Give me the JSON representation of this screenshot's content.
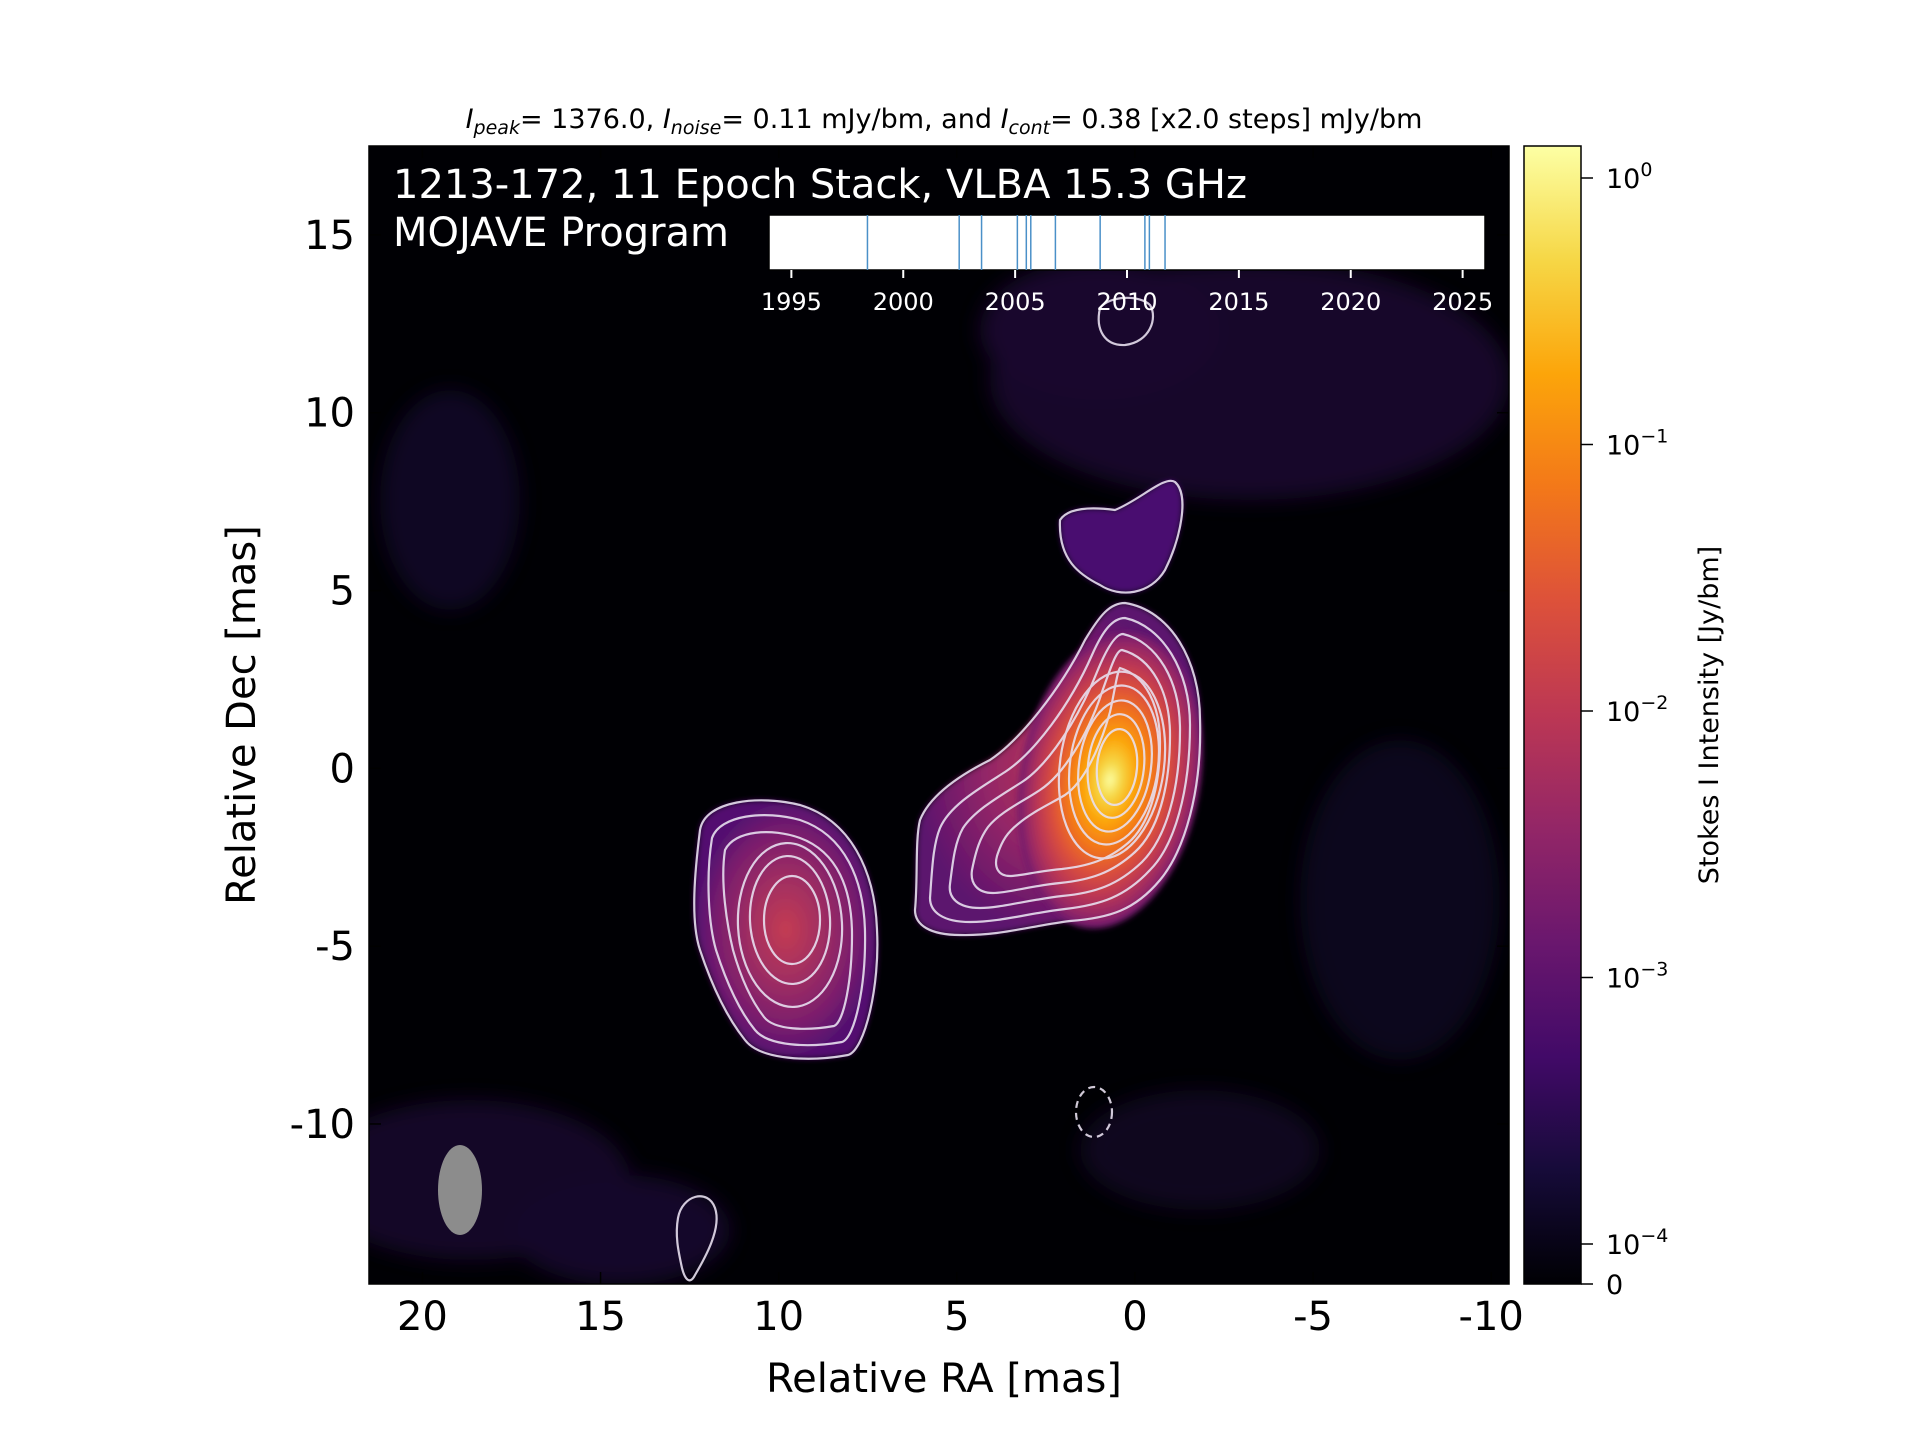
{
  "chart_data": {
    "type": "heatmap",
    "top_title": {
      "peak_symbol": "I",
      "peak_sub": "peak",
      "peak_value": "= 1376.0,",
      "noise_symbol": "I",
      "noise_sub": "noise",
      "noise_value": "= 0.11 mJy/bm, and",
      "cont_symbol": "I",
      "cont_sub": "cont",
      "cont_value": "= 0.38 [x2.0 steps] mJy/bm"
    },
    "annotation_lines": [
      "1213-172, 11 Epoch Stack, VLBA 15.3 GHz",
      "MOJAVE Program"
    ],
    "xlabel": "Relative RA [mas]",
    "ylabel": "Relative Dec [mas]",
    "xlim": [
      21.5,
      -10.5
    ],
    "ylim": [
      -14.5,
      17.5
    ],
    "x_ticks": [
      20,
      15,
      10,
      5,
      0,
      -5,
      -10
    ],
    "x_tick_labels": [
      "20",
      "15",
      "10",
      "5",
      "0",
      "-5",
      "-10"
    ],
    "y_ticks": [
      15,
      10,
      5,
      0,
      -5,
      -10
    ],
    "y_tick_labels": [
      "15",
      "10",
      "5",
      "0",
      "-5",
      "-10"
    ],
    "colorbar": {
      "label": "Stokes I Intensity [Jy/bm]",
      "scale": "log",
      "ticks": [
        0,
        0.0001,
        0.001,
        0.01,
        0.1,
        1
      ],
      "tick_base": "10",
      "tick_exponents": [
        "−4",
        "−3",
        "−2",
        "−1",
        "0"
      ],
      "zero_label": "0",
      "colormap": "inferno"
    },
    "epoch_timeline": {
      "x_ticks": [
        1995,
        2000,
        2005,
        2010,
        2015,
        2020,
        2025
      ],
      "x_tick_labels": [
        "1995",
        "2000",
        "2005",
        "2010",
        "2015",
        "2020",
        "2025"
      ],
      "xlim": [
        1994,
        2026
      ],
      "epochs": [
        1998.4,
        2002.5,
        2003.5,
        2005.1,
        2005.5,
        2005.7,
        2006.8,
        2008.8,
        2010.8,
        2011.0,
        2011.7
      ],
      "line_color": "#4a90c8"
    },
    "sources": [
      {
        "x": 0.2,
        "y": 0.0,
        "peak_jy": 1.376
      },
      {
        "x": 9.6,
        "y": -4.4,
        "peak_jy": 0.012
      }
    ],
    "beam": {
      "x": 18.8,
      "y": -12.0,
      "major_mas": 2.6,
      "minor_mas": 1.2,
      "pa_deg": 0
    },
    "colors": {
      "contour": "#e8e0f0",
      "beam": "#8c8c8c",
      "background": "#000004"
    }
  }
}
